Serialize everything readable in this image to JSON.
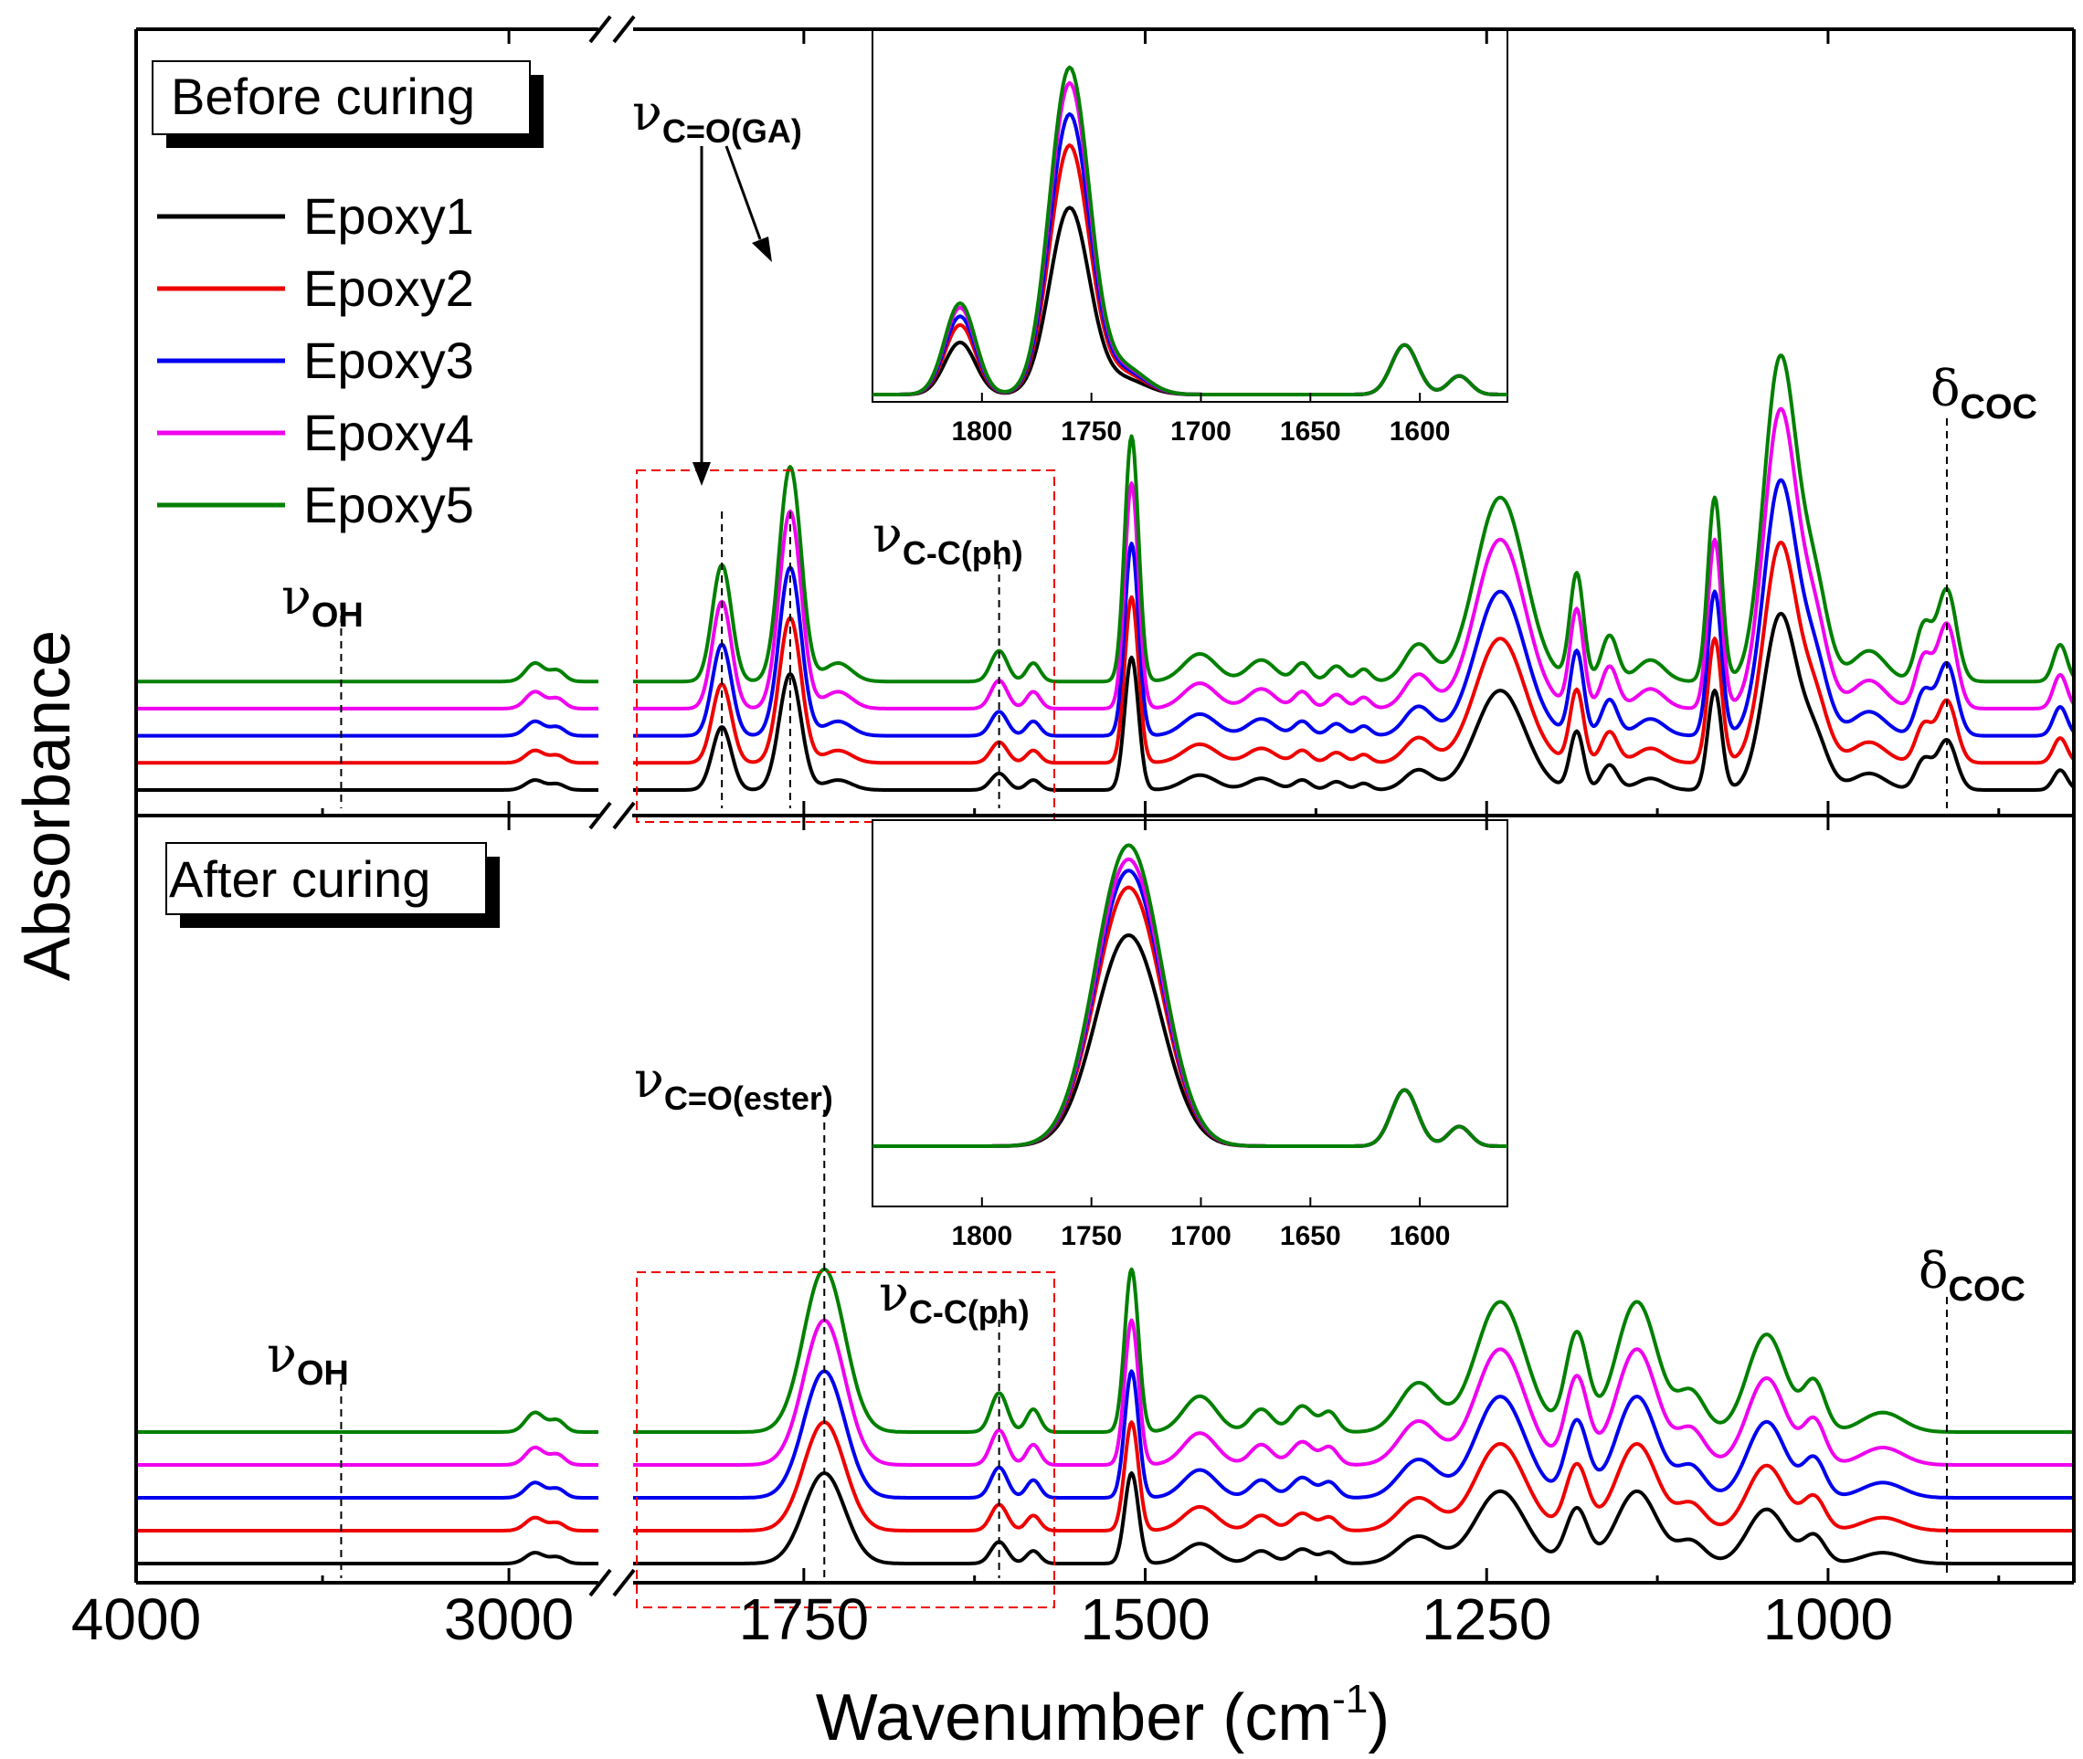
{
  "chart_data": {
    "type": "line",
    "title": "",
    "xlabel": "Wavenumber (cm",
    "xlabel_sup": "-1",
    "xlabel_close": ")",
    "ylabel": "Absorbance",
    "x_axis_break": "//",
    "x_segments": [
      {
        "xlim": [
          4000,
          2760
        ],
        "ticks": [
          4000,
          3000
        ]
      },
      {
        "xlim": [
          1875,
          820
        ],
        "ticks": [
          1750,
          1500,
          1250,
          1000
        ]
      }
    ],
    "series_names": [
      "Epoxy1",
      "Epoxy2",
      "Epoxy3",
      "Epoxy4",
      "Epoxy5"
    ],
    "series_colors": [
      "#000000",
      "#ee0000",
      "#0000ee",
      "#ee00ee",
      "#008000"
    ],
    "panels": [
      {
        "id": "before",
        "label": "Before curing",
        "series_offsets": [
          0,
          0.9,
          1.8,
          2.7,
          3.6
        ],
        "series_scales": [
          1.0,
          1.25,
          1.45,
          1.7,
          1.85
        ],
        "peaks": [
          {
            "x": 2930,
            "h": 0.6,
            "w": 25
          },
          {
            "x": 2870,
            "h": 0.35,
            "w": 20
          },
          {
            "x": 1810,
            "h": 3.8,
            "w": 7
          },
          {
            "x": 1760,
            "h": 7.0,
            "w": 8
          },
          {
            "x": 1725,
            "h": 0.6,
            "w": 10
          },
          {
            "x": 1607,
            "h": 1.0,
            "w": 6
          },
          {
            "x": 1582,
            "h": 0.6,
            "w": 5
          },
          {
            "x": 1510,
            "h": 8.0,
            "w": 5
          },
          {
            "x": 1460,
            "h": 0.9,
            "w": 12
          },
          {
            "x": 1415,
            "h": 0.7,
            "w": 10
          },
          {
            "x": 1385,
            "h": 0.6,
            "w": 6
          },
          {
            "x": 1360,
            "h": 0.5,
            "w": 6
          },
          {
            "x": 1340,
            "h": 0.4,
            "w": 5
          },
          {
            "x": 1300,
            "h": 1.2,
            "w": 10
          },
          {
            "x": 1240,
            "h": 6.0,
            "w": 18
          },
          {
            "x": 1184,
            "h": 3.5,
            "w": 5
          },
          {
            "x": 1160,
            "h": 1.5,
            "w": 6
          },
          {
            "x": 1130,
            "h": 0.7,
            "w": 10
          },
          {
            "x": 1083,
            "h": 6.0,
            "w": 5
          },
          {
            "x": 1035,
            "h": 10.5,
            "w": 12
          },
          {
            "x": 1010,
            "h": 3.0,
            "w": 10
          },
          {
            "x": 970,
            "h": 1.0,
            "w": 12
          },
          {
            "x": 930,
            "h": 1.8,
            "w": 6
          },
          {
            "x": 913,
            "h": 3.0,
            "w": 7
          },
          {
            "x": 830,
            "h": 1.2,
            "w": 5
          }
        ],
        "annotations": [
          {
            "label": "ν",
            "sub": "OH",
            "x_value": 3450
          },
          {
            "label": "ν",
            "sub": "C=O(GA)",
            "x_value": 1785
          },
          {
            "label": "ν",
            "sub": "C-C(ph)",
            "x_value": 1607
          },
          {
            "label": "δ",
            "sub": "COC",
            "x_value": 913
          }
        ],
        "inset": {
          "xlim": [
            1850,
            1560
          ],
          "ticks": [
            1800,
            1750,
            1700,
            1650,
            1600
          ],
          "series_scales": [
            0.6,
            0.8,
            0.9,
            1.0,
            1.05
          ],
          "peaks": [
            {
              "x": 1810,
              "h": 0.28,
              "w": 7
            },
            {
              "x": 1760,
              "h": 1.0,
              "w": 9
            },
            {
              "x": 1735,
              "h": 0.08,
              "w": 10
            }
          ],
          "shared_peaks": [
            {
              "x": 1607,
              "h": 0.16,
              "w": 6
            },
            {
              "x": 1582,
              "h": 0.06,
              "w": 5
            }
          ]
        }
      },
      {
        "id": "after",
        "label": "After curing",
        "series_offsets": [
          0,
          1.0,
          2.0,
          3.0,
          4.0
        ],
        "series_scales": [
          1.0,
          1.2,
          1.4,
          1.6,
          1.8
        ],
        "peaks": [
          {
            "x": 2930,
            "h": 0.6,
            "w": 25
          },
          {
            "x": 2870,
            "h": 0.35,
            "w": 20
          },
          {
            "x": 1735,
            "h": 5.0,
            "w": 15
          },
          {
            "x": 1607,
            "h": 1.2,
            "w": 6
          },
          {
            "x": 1582,
            "h": 0.7,
            "w": 5
          },
          {
            "x": 1510,
            "h": 5.0,
            "w": 5
          },
          {
            "x": 1460,
            "h": 1.1,
            "w": 12
          },
          {
            "x": 1415,
            "h": 0.7,
            "w": 8
          },
          {
            "x": 1385,
            "h": 0.8,
            "w": 8
          },
          {
            "x": 1365,
            "h": 0.6,
            "w": 6
          },
          {
            "x": 1300,
            "h": 1.5,
            "w": 14
          },
          {
            "x": 1240,
            "h": 4.0,
            "w": 18
          },
          {
            "x": 1184,
            "h": 3.0,
            "w": 8
          },
          {
            "x": 1140,
            "h": 4.0,
            "w": 15
          },
          {
            "x": 1100,
            "h": 1.2,
            "w": 10
          },
          {
            "x": 1045,
            "h": 3.0,
            "w": 14
          },
          {
            "x": 1010,
            "h": 1.5,
            "w": 8
          },
          {
            "x": 960,
            "h": 0.6,
            "w": 15
          }
        ],
        "annotations": [
          {
            "label": "ν",
            "sub": "OH",
            "x_value": 3450
          },
          {
            "label": "ν",
            "sub": "C=O(ester)",
            "x_value": 1735
          },
          {
            "label": "ν",
            "sub": "C-C(ph)",
            "x_value": 1607
          },
          {
            "label": "δ",
            "sub": "COC",
            "x_value": 913
          }
        ],
        "inset": {
          "xlim": [
            1850,
            1560
          ],
          "ticks": [
            1800,
            1750,
            1700,
            1650,
            1600
          ],
          "series_scales": [
            0.75,
            0.92,
            0.98,
            1.02,
            1.07
          ],
          "peaks": [
            {
              "x": 1733,
              "h": 1.0,
              "w": 15
            }
          ],
          "shared_peaks": [
            {
              "x": 1607,
              "h": 0.2,
              "w": 6
            },
            {
              "x": 1582,
              "h": 0.07,
              "w": 5
            }
          ]
        }
      }
    ]
  }
}
